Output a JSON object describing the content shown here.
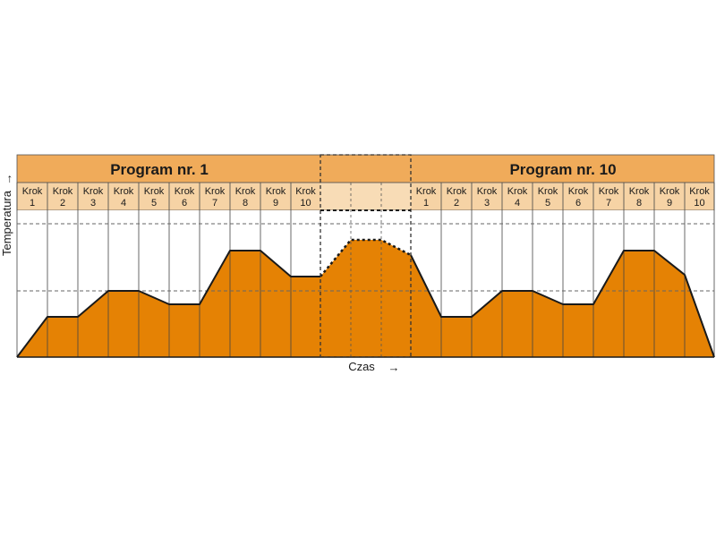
{
  "diagram": {
    "programs": [
      {
        "title": "Program nr. 1"
      },
      {
        "title": "Program nr. 10"
      }
    ],
    "step_word": "Krok",
    "steps_left": [
      "1",
      "2",
      "3",
      "4",
      "5",
      "6",
      "7",
      "8",
      "9",
      "10"
    ],
    "steps_right": [
      "1",
      "2",
      "3",
      "4",
      "5",
      "6",
      "7",
      "8",
      "9",
      "10"
    ],
    "x_axis_label": "Czas",
    "x_axis_arrow": "→",
    "y_axis_label": "Temperatura",
    "y_axis_arrow": "→",
    "colors": {
      "header": "#f0ab5a",
      "step_header": "#f6d3a5",
      "step_header_gap": "#f8dcb6",
      "fill": "#e58204",
      "outline": "#1a1a1a",
      "gridline": "#666666"
    },
    "icons": [
      "right-arrow-icon"
    ]
  }
}
